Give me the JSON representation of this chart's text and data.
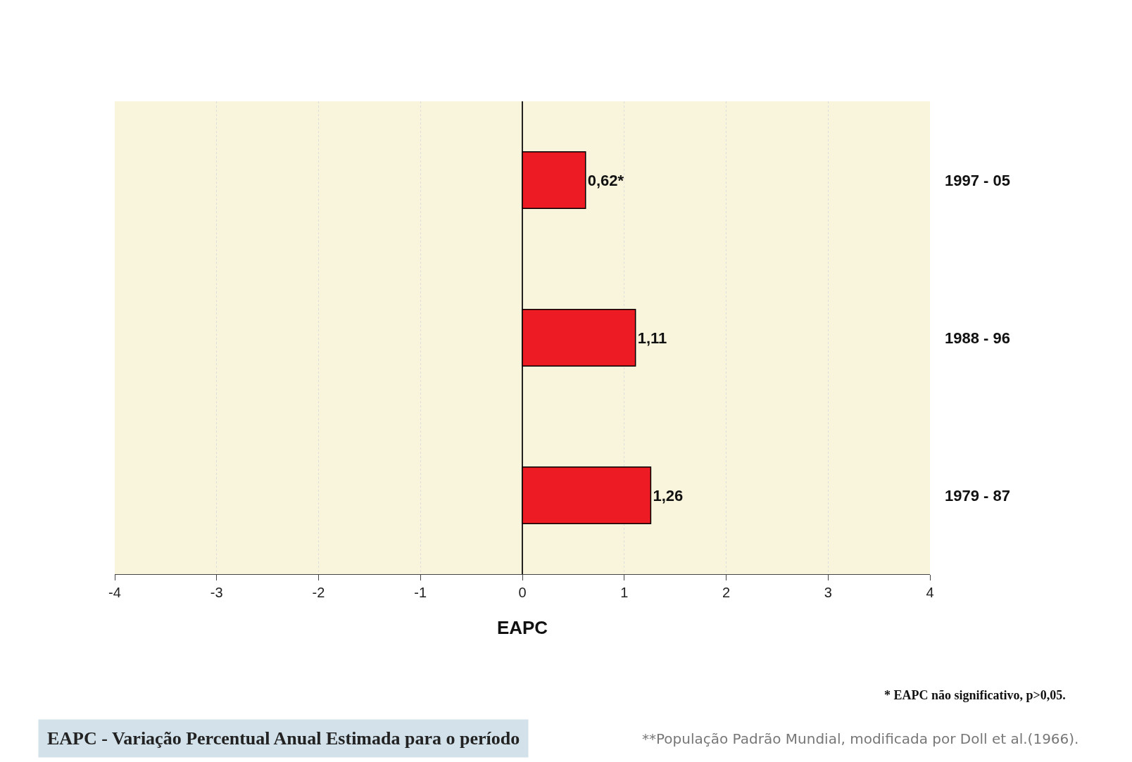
{
  "chart_data": {
    "type": "bar",
    "orientation": "horizontal",
    "xlabel": "EAPC",
    "categories": [
      "1997 - 05",
      "1988 - 96",
      "1979 - 87"
    ],
    "values": [
      0.62,
      1.11,
      1.26
    ],
    "value_labels": [
      "0,62*",
      "1,11",
      "1,26"
    ],
    "color": "#ed1c24",
    "xlim": [
      -4,
      4
    ],
    "xticks": [
      -4,
      -3,
      -2,
      -1,
      0,
      1,
      2,
      3,
      4
    ],
    "grid": "x",
    "annotations": [
      "* EAPC não significativo, p>0,05.",
      "EAPC - Variação Percentual Anual Estimada para o período",
      "**População Padrão Mundial, modificada por Doll et al.(1966)."
    ]
  }
}
